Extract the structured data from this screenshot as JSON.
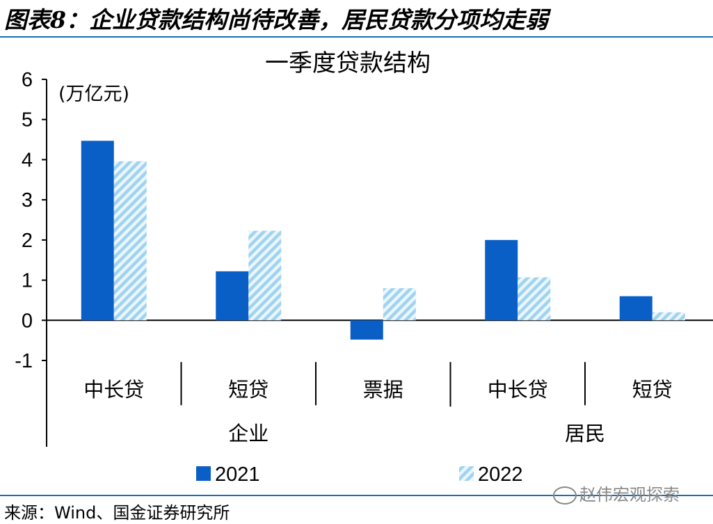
{
  "figure": {
    "title": "图表8：企业贷款结构尚待改善，居民贷款分项均走弱",
    "source": "来源：Wind、国金证券研究所",
    "watermark": "赵伟宏观探索"
  },
  "chart_data": {
    "type": "bar",
    "title": "一季度贷款结构",
    "unit_label": "(万亿元)",
    "categories": [
      "中长贷",
      "短贷",
      "票据",
      "中长贷",
      "短贷"
    ],
    "groups": [
      {
        "label": "企业",
        "span": [
          0,
          2
        ]
      },
      {
        "label": "居民",
        "span": [
          3,
          4
        ]
      }
    ],
    "series": [
      {
        "name": "2021",
        "values": [
          4.47,
          1.22,
          -0.48,
          2.0,
          0.6
        ],
        "color": "#0a5fc7",
        "style": "solid"
      },
      {
        "name": "2022",
        "values": [
          3.96,
          2.23,
          0.8,
          1.07,
          0.2
        ],
        "color": "#9fd3f0",
        "style": "hatched"
      }
    ],
    "ylim": [
      -1,
      6
    ],
    "yticks": [
      -1,
      0,
      1,
      2,
      3,
      4,
      5,
      6
    ],
    "legend_position": "bottom"
  }
}
